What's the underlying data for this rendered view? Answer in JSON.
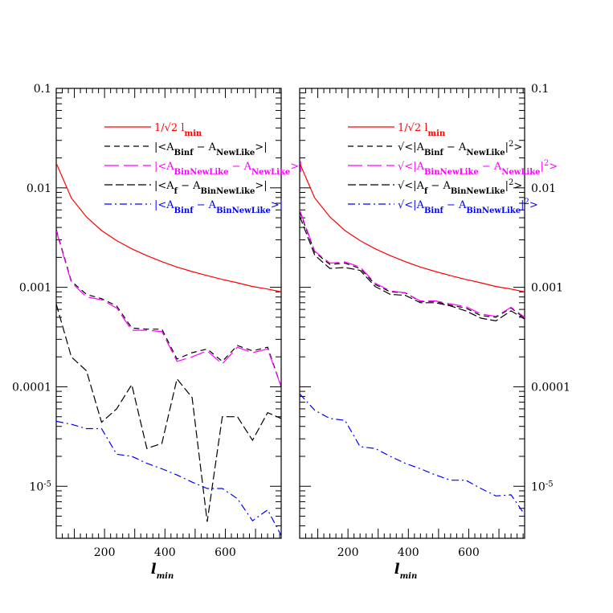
{
  "chart_data": [
    {
      "type": "line",
      "panel": "left",
      "xlabel": "l_min",
      "ylabel": "",
      "xlim": [
        40,
        785
      ],
      "ylim": [
        3e-06,
        0.1
      ],
      "y_scale": "log",
      "x_ticks": [
        "200",
        "400",
        "600"
      ],
      "y_tick_labels": [
        "0.1",
        "0.01",
        "0.001",
        "0.0001",
        "10^-5"
      ],
      "y_tick_labels_side": "left",
      "legend_placement": "top-right",
      "series": [
        {
          "name": "1/√2 l_min",
          "color": "#ff0000",
          "style": "solid",
          "x": [
            40,
            90,
            140,
            190,
            240,
            290,
            340,
            390,
            440,
            490,
            540,
            590,
            640,
            690,
            740,
            785
          ],
          "y": [
            0.0177,
            0.0079,
            0.0051,
            0.00372,
            0.00295,
            0.00244,
            0.00208,
            0.00181,
            0.0016,
            0.00144,
            0.00131,
            0.0012,
            0.00111,
            0.00102,
            0.00096,
            0.0009
          ]
        },
        {
          "name": "|<A_Binf − A_NewLike>|",
          "color": "#000000",
          "style": "short-dash",
          "x": [
            40,
            90,
            140,
            190,
            240,
            290,
            340,
            390,
            440,
            490,
            540,
            590,
            640,
            690,
            740,
            785
          ],
          "y": [
            0.0038,
            0.00115,
            0.00085,
            0.00077,
            0.00065,
            0.00039,
            0.00038,
            0.00038,
            0.00019,
            0.00022,
            0.00024,
            0.00018,
            0.00026,
            0.00023,
            0.00025,
            0.0001
          ]
        },
        {
          "name": "|<A_BinNewLike − A_NewLike>|",
          "color": "#ff00ff",
          "style": "long-dash",
          "x": [
            40,
            90,
            140,
            190,
            240,
            290,
            340,
            390,
            440,
            490,
            540,
            590,
            640,
            690,
            740,
            785
          ],
          "y": [
            0.0037,
            0.00112,
            0.0008,
            0.00075,
            0.00062,
            0.00037,
            0.00037,
            0.00036,
            0.00018,
            0.0002,
            0.00023,
            0.00017,
            0.00025,
            0.00022,
            0.00024,
            0.0001
          ]
        },
        {
          "name": "|<A_f − A_BinNewLike>|",
          "color": "#000000",
          "style": "dash-long",
          "x": [
            40,
            90,
            140,
            190,
            240,
            290,
            340,
            390,
            440,
            490,
            540,
            590,
            640,
            690,
            740,
            785
          ],
          "y": [
            0.00068,
            0.0002,
            0.000145,
            4.4e-05,
            6e-05,
            0.000105,
            2.4e-05,
            2.7e-05,
            0.00012,
            7.8e-05,
            4.4e-06,
            5e-05,
            5e-05,
            2.9e-05,
            5.5e-05,
            4.8e-05
          ]
        },
        {
          "name": "|<A_Binf − A_BinNewLike>|",
          "color": "#0000ff",
          "style": "dash-dot",
          "x": [
            40,
            90,
            140,
            190,
            240,
            290,
            340,
            390,
            440,
            490,
            540,
            590,
            640,
            690,
            740,
            785
          ],
          "y": [
            4.5e-05,
            4.2e-05,
            3.8e-05,
            3.8e-05,
            2.1e-05,
            2e-05,
            1.7e-05,
            1.5e-05,
            1.3e-05,
            1.1e-05,
            9.5e-06,
            9.5e-06,
            7.5e-06,
            4.5e-06,
            5.8e-06,
            3.2e-06
          ]
        }
      ]
    },
    {
      "type": "line",
      "panel": "right",
      "xlabel": "l_min",
      "ylabel": "",
      "xlim": [
        40,
        785
      ],
      "ylim": [
        3e-06,
        0.1
      ],
      "y_scale": "log",
      "x_ticks": [
        "200",
        "400",
        "600"
      ],
      "y_tick_labels": [
        "0.1",
        "0.01",
        "0.001",
        "0.0001",
        "10^-5"
      ],
      "y_tick_labels_side": "right",
      "legend_placement": "top-right",
      "series": [
        {
          "name": "1/√2 l_min",
          "color": "#ff0000",
          "style": "solid",
          "x": [
            40,
            90,
            140,
            190,
            240,
            290,
            340,
            390,
            440,
            490,
            540,
            590,
            640,
            690,
            740,
            785
          ],
          "y": [
            0.0177,
            0.0079,
            0.0051,
            0.00372,
            0.00295,
            0.00244,
            0.00208,
            0.00181,
            0.0016,
            0.00144,
            0.00131,
            0.0012,
            0.00111,
            0.00102,
            0.00096,
            0.0009
          ]
        },
        {
          "name": "√<|A_Binf − A_NewLike|²>",
          "color": "#000000",
          "style": "short-dash",
          "x": [
            40,
            90,
            140,
            190,
            240,
            290,
            340,
            390,
            440,
            490,
            540,
            590,
            640,
            690,
            740,
            785
          ],
          "y": [
            0.0058,
            0.00225,
            0.0017,
            0.00175,
            0.00155,
            0.00107,
            0.0009,
            0.00088,
            0.00072,
            0.00072,
            0.00066,
            0.00062,
            0.00052,
            0.0005,
            0.00062,
            0.00049
          ]
        },
        {
          "name": "√<|A_BinNewLike − A_NewLike|²>",
          "color": "#ff00ff",
          "style": "long-dash",
          "x": [
            40,
            90,
            140,
            190,
            240,
            290,
            340,
            390,
            440,
            490,
            540,
            590,
            640,
            690,
            740,
            785
          ],
          "y": [
            0.006,
            0.0023,
            0.00175,
            0.0018,
            0.0016,
            0.0011,
            0.00092,
            0.00088,
            0.00073,
            0.00073,
            0.00068,
            0.00064,
            0.00054,
            0.00051,
            0.00063,
            0.0005
          ]
        },
        {
          "name": "√<|A_f − A_BinNewLike|²>",
          "color": "#000000",
          "style": "dash-long",
          "x": [
            40,
            90,
            140,
            190,
            240,
            290,
            340,
            390,
            440,
            490,
            540,
            590,
            640,
            690,
            740,
            785
          ],
          "y": [
            0.0052,
            0.0021,
            0.00155,
            0.00158,
            0.00148,
            0.00102,
            0.00085,
            0.00083,
            0.0007,
            0.0007,
            0.00065,
            0.00058,
            0.00049,
            0.00046,
            0.00058,
            0.00048
          ]
        },
        {
          "name": "√<|A_Binf − A_BinNewLike|²>",
          "color": "#0000ff",
          "style": "dash-dot",
          "x": [
            40,
            90,
            140,
            190,
            240,
            290,
            340,
            390,
            440,
            490,
            540,
            590,
            640,
            690,
            740,
            785
          ],
          "y": [
            8.5e-05,
            5.8e-05,
            4.8e-05,
            4.6e-05,
            2.5e-05,
            2.4e-05,
            2e-05,
            1.7e-05,
            1.5e-05,
            1.3e-05,
            1.15e-05,
            1.15e-05,
            9.5e-06,
            8e-06,
            8.2e-06,
            5.2e-06
          ]
        }
      ]
    }
  ]
}
